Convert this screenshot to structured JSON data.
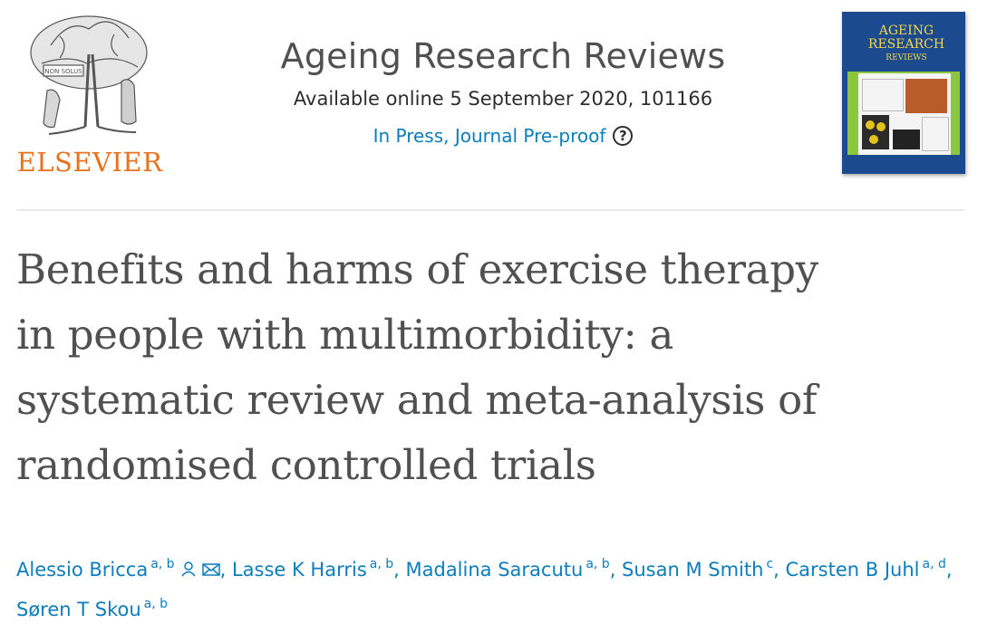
{
  "publisher": {
    "name": "ELSEVIER",
    "logo_icon": "elsevier-tree-logo"
  },
  "journal": {
    "title": "Ageing Research Reviews",
    "date_line": "Available online 5 September 2020, 101166",
    "status": "In Press, Journal Pre-proof",
    "status_icon": "help-icon",
    "cover": {
      "line1": "AGEING",
      "line2": "RESEARCH",
      "line3": "REVIEWS"
    }
  },
  "article": {
    "title_lines": [
      "Benefits and harms of exercise therapy",
      "in people with multimorbidity: a",
      "systematic review and meta-analysis of",
      "randomised controlled trials"
    ]
  },
  "authors": [
    {
      "name": "Alessio Bricca",
      "affil": "a, b",
      "icons": [
        "person-icon",
        "mail-icon"
      ]
    },
    {
      "name": "Lasse K Harris",
      "affil": "a, b"
    },
    {
      "name": "Madalina Saracutu",
      "affil": "a, b"
    },
    {
      "name": "Susan M Smith",
      "affil": "c"
    },
    {
      "name": "Carsten B Juhl",
      "affil": "a, d"
    },
    {
      "name": "Søren T Skou",
      "affil": "a, b"
    }
  ],
  "colors": {
    "link": "#0c7dbb",
    "publisher_orange": "#e9711c",
    "cover_blue": "#1c4a8e"
  }
}
